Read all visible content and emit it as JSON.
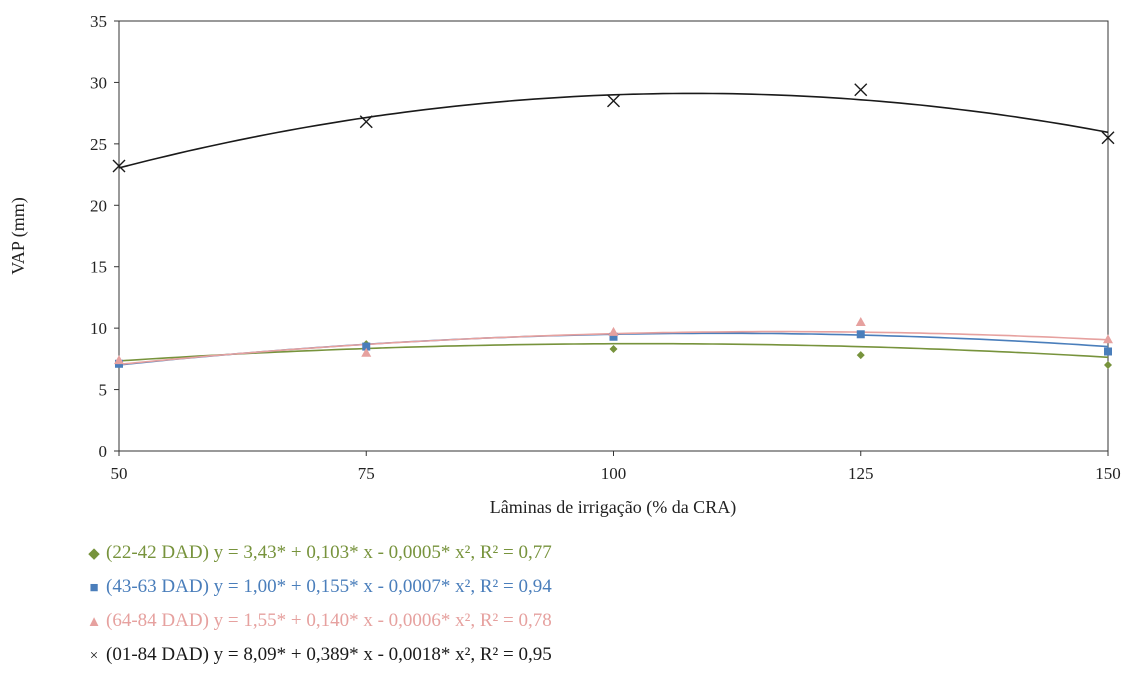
{
  "chart_data": {
    "type": "scatter",
    "title": "",
    "xlabel": "Lâminas  de irrigação  (% da CRA)",
    "ylabel": "VAP (mm)",
    "x": [
      50,
      75,
      100,
      125,
      150
    ],
    "xlim": [
      50,
      150
    ],
    "ylim": [
      0,
      35
    ],
    "xticks": [
      "50",
      "75",
      "100",
      "125",
      "150"
    ],
    "yticks": [
      "0",
      "5",
      "10",
      "15",
      "20",
      "25",
      "30",
      "35"
    ],
    "grid": false,
    "legend_position": "bottom",
    "series": [
      {
        "name": "(22-42 DAD)",
        "equation": "y = 3,43* + 0,103* x - 0,0005* x², R² = 0,77",
        "color": "#77933c",
        "marker": "diamond",
        "marker_glyph": "◆",
        "values": [
          7.2,
          8.7,
          8.3,
          7.8,
          7.0
        ],
        "coefficients": [
          3.43,
          0.103,
          -0.0005
        ]
      },
      {
        "name": "(43-63 DAD)",
        "equation": "y = 1,00* + 0,155* x - 0,0007* x², R² = 0,94",
        "color": "#4a7ebb",
        "marker": "square",
        "marker_glyph": "■",
        "values": [
          7.1,
          8.5,
          9.3,
          9.5,
          8.1
        ],
        "coefficients": [
          1.0,
          0.155,
          -0.0007
        ]
      },
      {
        "name": "(64-84 DAD)",
        "equation": "y = 1,55* + 0,140* x - 0,0006* x², R² = 0,78",
        "color": "#e6a19f",
        "marker": "triangle",
        "marker_glyph": "▲",
        "values": [
          7.4,
          8.0,
          9.7,
          10.5,
          9.1
        ],
        "coefficients": [
          1.55,
          0.14,
          -0.0006
        ]
      },
      {
        "name": "(01-84 DAD)",
        "equation": "y = 8,09* + 0,389* x - 0,0018* x², R² = 0,95",
        "color": "#1a1a1a",
        "marker": "x",
        "marker_glyph": "×",
        "values": [
          23.2,
          26.8,
          28.5,
          29.4,
          25.5
        ],
        "coefficients": [
          8.09,
          0.389,
          -0.0018
        ]
      }
    ]
  }
}
